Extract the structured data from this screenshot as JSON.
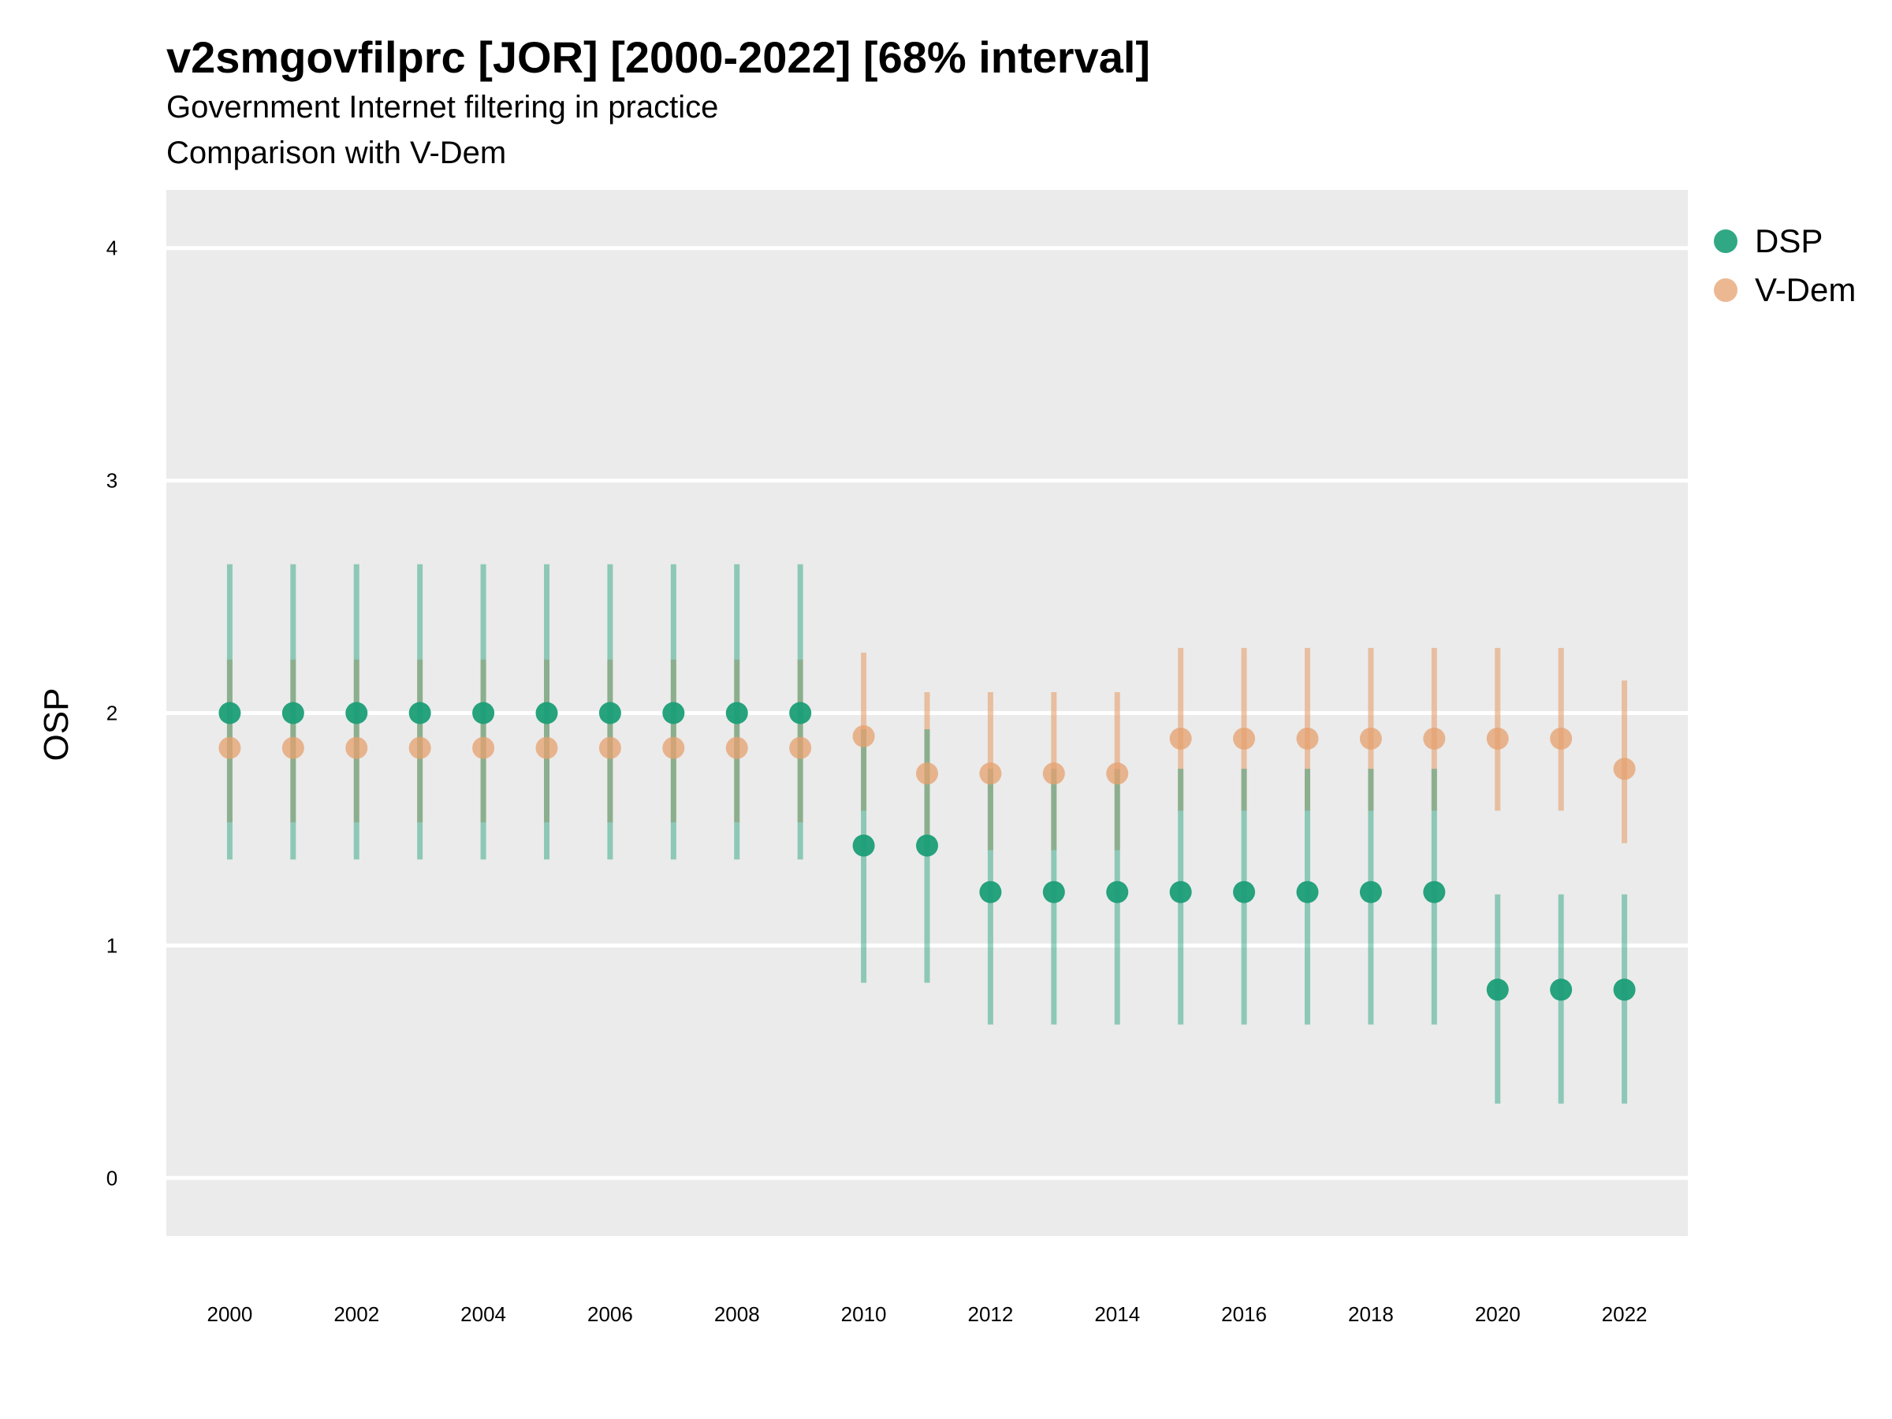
{
  "title": "v2smgovfilprc [JOR] [2000-2022] [68% interval]",
  "subtitle1": "Government Internet filtering in practice",
  "subtitle2": "Comparison with V-Dem",
  "colors": {
    "panel": "#EBEBEB",
    "grid": "#FFFFFF",
    "dsp": "#1B9E77",
    "vdem": "#E6A06E"
  },
  "chart_data": {
    "type": "scatter",
    "title": "v2smgovfilprc [JOR] [2000-2022] [68% interval]",
    "xlabel": "",
    "ylabel": "OSP",
    "xlim": [
      1999,
      2023
    ],
    "ylim": [
      -0.25,
      4.25
    ],
    "y_ticks": [
      0,
      1,
      2,
      3,
      4
    ],
    "x_ticks": [
      2000,
      2002,
      2004,
      2006,
      2008,
      2010,
      2012,
      2014,
      2016,
      2018,
      2020,
      2022
    ],
    "grid": true,
    "legend_position": "right",
    "series": [
      {
        "name": "DSP",
        "color": "#1B9E77",
        "x": [
          2000,
          2001,
          2002,
          2003,
          2004,
          2005,
          2006,
          2007,
          2008,
          2009,
          2010,
          2011,
          2012,
          2013,
          2014,
          2015,
          2016,
          2017,
          2018,
          2019,
          2020,
          2021,
          2022
        ],
        "y": [
          2.0,
          2.0,
          2.0,
          2.0,
          2.0,
          2.0,
          2.0,
          2.0,
          2.0,
          2.0,
          1.43,
          1.43,
          1.23,
          1.23,
          1.23,
          1.23,
          1.23,
          1.23,
          1.23,
          1.23,
          0.81,
          0.81,
          0.81
        ],
        "lower": [
          1.37,
          1.37,
          1.37,
          1.37,
          1.37,
          1.37,
          1.37,
          1.37,
          1.37,
          1.37,
          0.84,
          0.84,
          0.66,
          0.66,
          0.66,
          0.66,
          0.66,
          0.66,
          0.66,
          0.66,
          0.32,
          0.32,
          0.32
        ],
        "upper": [
          2.64,
          2.64,
          2.64,
          2.64,
          2.64,
          2.64,
          2.64,
          2.64,
          2.64,
          2.64,
          1.93,
          1.93,
          1.76,
          1.76,
          1.76,
          1.76,
          1.76,
          1.76,
          1.76,
          1.76,
          1.22,
          1.22,
          1.22
        ]
      },
      {
        "name": "V-Dem",
        "color": "#E6A06E",
        "x": [
          2000,
          2001,
          2002,
          2003,
          2004,
          2005,
          2006,
          2007,
          2008,
          2009,
          2010,
          2011,
          2012,
          2013,
          2014,
          2015,
          2016,
          2017,
          2018,
          2019,
          2020,
          2021,
          2022
        ],
        "y": [
          1.85,
          1.85,
          1.85,
          1.85,
          1.85,
          1.85,
          1.85,
          1.85,
          1.85,
          1.85,
          1.9,
          1.74,
          1.74,
          1.74,
          1.74,
          1.89,
          1.89,
          1.89,
          1.89,
          1.89,
          1.89,
          1.89,
          1.76
        ],
        "lower": [
          1.53,
          1.53,
          1.53,
          1.53,
          1.53,
          1.53,
          1.53,
          1.53,
          1.53,
          1.53,
          1.58,
          1.41,
          1.41,
          1.41,
          1.41,
          1.58,
          1.58,
          1.58,
          1.58,
          1.58,
          1.58,
          1.58,
          1.44
        ],
        "upper": [
          2.23,
          2.23,
          2.23,
          2.23,
          2.23,
          2.23,
          2.23,
          2.23,
          2.23,
          2.23,
          2.26,
          2.09,
          2.09,
          2.09,
          2.09,
          2.28,
          2.28,
          2.28,
          2.28,
          2.28,
          2.28,
          2.28,
          2.14
        ]
      }
    ]
  }
}
